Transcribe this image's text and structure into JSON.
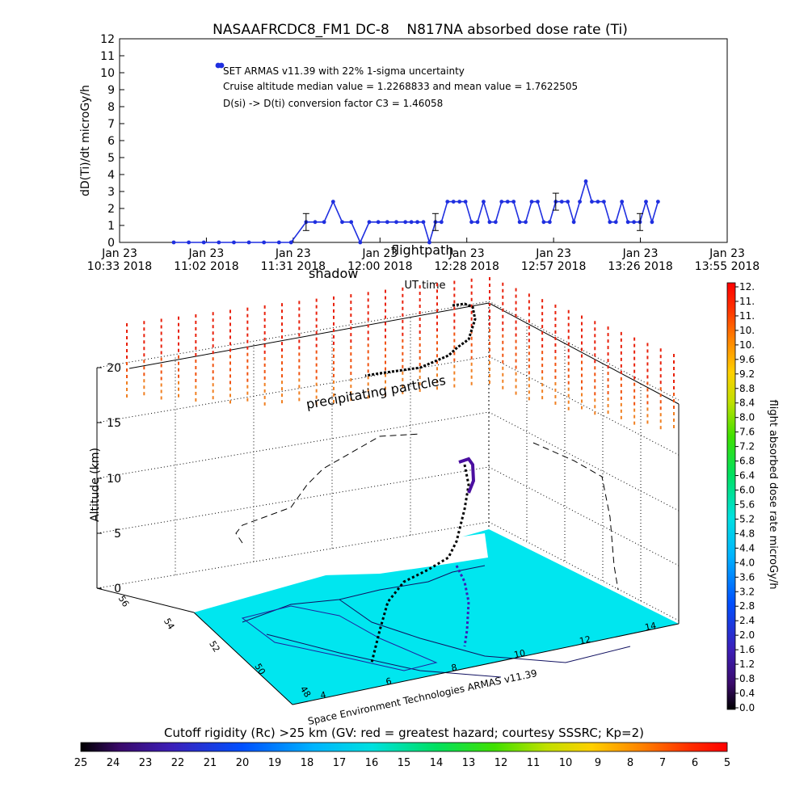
{
  "title": "NASAAFRCDC8_FM1 DC-8    N817NA absorbed dose rate (Ti)",
  "colors": {
    "series": "#1f2fe0",
    "background": "#ffffff"
  },
  "chart_data": [
    {
      "type": "line",
      "title": "NASAAFRCDC8_FM1 DC-8    N817NA absorbed dose rate (Ti)",
      "xlabel": "UT time",
      "ylabel": "dD(Ti)/dt microGy/h",
      "ylim": [
        0,
        12
      ],
      "yticks": [
        "0",
        "1",
        "2",
        "3",
        "4",
        "5",
        "6",
        "7",
        "8",
        "9",
        "10",
        "11",
        "12"
      ],
      "xticks": [
        {
          "line1": "Jan 23",
          "line2": "10:33 2018"
        },
        {
          "line1": "Jan 23",
          "line2": "11:02 2018"
        },
        {
          "line1": "Jan 23",
          "line2": "11:31 2018"
        },
        {
          "line1": "Jan 23",
          "line2": "12:00 2018"
        },
        {
          "line1": "Jan 23",
          "line2": "12:28 2018"
        },
        {
          "line1": "Jan 23",
          "line2": "12:57 2018"
        },
        {
          "line1": "Jan 23",
          "line2": "13:26 2018"
        },
        {
          "line1": "Jan 23",
          "line2": "13:55 2018"
        }
      ],
      "annotations": [
        "SET ARMAS v11.39 with 22% 1-sigma uncertainty",
        "Cruise altitude median value = 1.2268833 and mean value = 1.7622505",
        "D(si) -> D(ti) conversion factor C3 = 1.46058"
      ],
      "overlay_labels": [
        "flightpath",
        "shadow"
      ],
      "series": [
        {
          "x_minutes_after_1033": [
            18,
            23,
            28,
            33,
            38,
            43,
            48,
            53,
            57,
            62,
            65,
            68,
            71,
            74,
            77,
            80,
            83,
            86,
            89,
            92,
            95,
            97,
            99,
            101,
            103,
            105,
            107,
            109,
            111,
            113,
            115,
            117,
            119,
            121,
            123,
            125,
            127,
            129,
            131,
            133,
            135,
            137,
            139,
            141,
            143,
            145,
            147,
            149,
            151,
            153,
            155,
            157,
            159,
            161,
            163,
            165,
            167,
            169,
            171,
            173,
            175,
            177,
            179
          ],
          "x_ut": [
            "10:51",
            "10:56",
            "11:01",
            "11:06",
            "11:11",
            "11:16",
            "11:21",
            "11:26",
            "11:30",
            "11:35",
            "11:38",
            "11:41",
            "11:44",
            "11:47",
            "11:50",
            "11:53",
            "11:56",
            "11:59",
            "12:02",
            "12:05",
            "12:08",
            "12:10",
            "12:12",
            "12:14",
            "12:16",
            "12:18",
            "12:20",
            "12:22",
            "12:24",
            "12:26",
            "12:28",
            "12:30",
            "12:32",
            "12:34",
            "12:36",
            "12:38",
            "12:40",
            "12:42",
            "12:44",
            "12:46",
            "12:48",
            "12:50",
            "12:52",
            "12:54",
            "12:56",
            "12:58",
            "13:00",
            "13:02",
            "13:04",
            "13:06",
            "13:08",
            "13:10",
            "13:12",
            "13:14",
            "13:16",
            "13:18",
            "13:20",
            "13:22",
            "13:24",
            "13:26",
            "13:28",
            "13:30",
            "13:32"
          ],
          "values": [
            0,
            0,
            0,
            0,
            0,
            0,
            0,
            0,
            0,
            1.2,
            1.2,
            1.2,
            2.4,
            1.2,
            1.2,
            0,
            1.2,
            1.2,
            1.2,
            1.2,
            1.2,
            1.2,
            1.2,
            1.2,
            0,
            1.2,
            1.2,
            2.4,
            2.4,
            2.4,
            2.4,
            1.2,
            1.2,
            2.4,
            1.2,
            1.2,
            2.4,
            2.4,
            2.4,
            1.2,
            1.2,
            2.4,
            2.4,
            1.2,
            1.2,
            2.4,
            2.4,
            2.4,
            1.2,
            2.4,
            3.6,
            2.4,
            2.4,
            2.4,
            1.2,
            1.2,
            2.4,
            1.2,
            1.2,
            1.2,
            2.4,
            1.2,
            2.4
          ],
          "error_bars_at": [
            "11:35",
            "12:18",
            "12:58",
            "13:26"
          ],
          "error_half_width": 0.5
        }
      ],
      "legend": "marker at top-left of plot"
    },
    {
      "type": "scatter",
      "title": "",
      "zlabel": "Altitude (km)",
      "zticks": [
        "0",
        "5",
        "10",
        "15",
        "20"
      ],
      "x_axis_ticks": [
        "4",
        "6",
        "8",
        "10",
        "12",
        "14"
      ],
      "y_axis_ticks": [
        "48",
        "50",
        "52",
        "54",
        "56"
      ],
      "labels": [
        "precipitating particles",
        "Space Environment Technologies ARMAS v11.39"
      ],
      "colorbar": {
        "label": "flight absorbed dose rate microGy/h",
        "ticks": [
          "12.",
          "11.",
          "11.",
          "10.",
          "10.",
          "9.6",
          "9.2",
          "8.8",
          "8.4",
          "8.0",
          "7.6",
          "7.2",
          "6.8",
          "6.4",
          "6.0",
          "5.6",
          "5.2",
          "4.8",
          "4.4",
          "4.0",
          "3.6",
          "3.2",
          "2.8",
          "2.4",
          "2.0",
          "1.6",
          "1.2",
          "0.8",
          "0.4",
          "0.0"
        ]
      }
    },
    {
      "type": "heatmap",
      "title": "Cutoff rigidity (Rc) >25 km  (GV: red = greatest hazard; courtesy SSSRC; Kp=2)",
      "colorbar_ticks": [
        "25",
        "24",
        "23",
        "22",
        "21",
        "20",
        "19",
        "18",
        "17",
        "16",
        "15",
        "14",
        "13",
        "12",
        "11",
        "10",
        "9",
        "8",
        "7",
        "6",
        "5"
      ]
    }
  ]
}
